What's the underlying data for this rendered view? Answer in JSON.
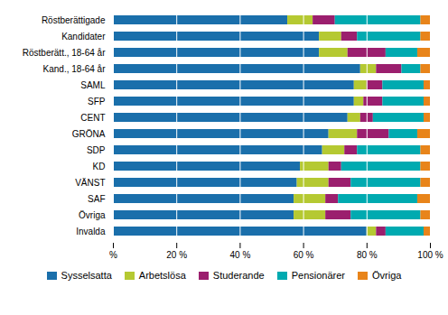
{
  "chart_data": {
    "type": "bar",
    "orientation": "horizontal",
    "stacked": true,
    "categories": [
      "Röstberättigade",
      "Kandidater",
      "Röstberätt., 18-64 år",
      "Kand., 18-64 år",
      "SAML",
      "SFP",
      "CENT",
      "GRÖNA",
      "SDP",
      "KD",
      "VÄNST",
      "SAF",
      "Övriga",
      "Invalda"
    ],
    "series": [
      {
        "name": "Sysselsatta",
        "color": "#1a6fab",
        "values": [
          55,
          65,
          65,
          78,
          76,
          76,
          74,
          68,
          66,
          59,
          58,
          57,
          57,
          80
        ]
      },
      {
        "name": "Arbetslösa",
        "color": "#b5c932",
        "values": [
          8,
          7,
          9,
          5,
          4,
          3,
          4,
          9,
          7,
          9,
          10,
          10,
          10,
          3
        ]
      },
      {
        "name": "Studerande",
        "color": "#9b1f6e",
        "values": [
          7,
          5,
          12,
          8,
          5,
          6,
          4,
          10,
          4,
          4,
          7,
          4,
          8,
          3
        ]
      },
      {
        "name": "Pensionärer",
        "color": "#00aab0",
        "values": [
          27,
          20,
          10,
          6,
          13,
          13,
          16,
          9,
          20,
          25,
          22,
          25,
          22,
          12
        ]
      },
      {
        "name": "Övriga",
        "color": "#e8841a",
        "values": [
          3,
          3,
          4,
          3,
          2,
          2,
          2,
          4,
          3,
          3,
          3,
          4,
          3,
          2
        ]
      }
    ],
    "xlim": [
      0,
      100
    ],
    "xticks": [
      {
        "value": 0,
        "label": "%"
      },
      {
        "value": 20,
        "label": "20 %"
      },
      {
        "value": 40,
        "label": "40 %"
      },
      {
        "value": 60,
        "label": "60 %"
      },
      {
        "value": 80,
        "label": "80 %"
      },
      {
        "value": 100,
        "label": "100 %"
      }
    ],
    "grid": true,
    "legend": "bottom"
  }
}
